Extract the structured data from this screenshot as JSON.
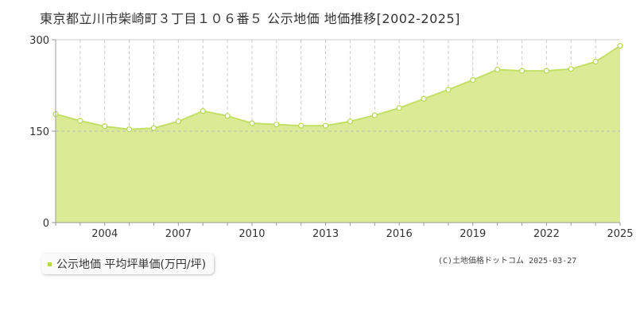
{
  "title": "東京都立川市柴崎町３丁目１０６番５ 公示地価 地価推移[2002-2025]",
  "legend_label": "公示地価 平均坪単価(万円/坪)",
  "copyright": "(C)土地価格ドットコム 2025-03-27",
  "colors": {
    "area_fill": "#dbeb95",
    "line": "#c3df68",
    "point_fill": "#ffffff",
    "point_stroke": "#b6d94f",
    "grid_dashed": "#cccccc",
    "axis": "#999999",
    "legend_swatch": "#b6d94f"
  },
  "chart_data": {
    "type": "area",
    "x": [
      2002,
      2003,
      2004,
      2005,
      2006,
      2007,
      2008,
      2009,
      2010,
      2011,
      2012,
      2013,
      2014,
      2015,
      2016,
      2017,
      2018,
      2019,
      2020,
      2021,
      2022,
      2023,
      2024,
      2025
    ],
    "series": [
      {
        "values": [
          178,
          167,
          158,
          153,
          155,
          166,
          183,
          175,
          163,
          161,
          159,
          159,
          166,
          176,
          188,
          203,
          218,
          234,
          251,
          249,
          249,
          252,
          264,
          290
        ]
      }
    ],
    "x_tick_labels": [
      "2004",
      "2007",
      "2010",
      "2013",
      "2016",
      "2019",
      "2022",
      "2025"
    ],
    "y_tick_labels": [
      "0",
      "150",
      "300"
    ],
    "y_ticks": [
      0,
      150,
      300
    ],
    "ylim": [
      0,
      300
    ],
    "xlim": [
      2002,
      2025
    ],
    "grid": true
  }
}
